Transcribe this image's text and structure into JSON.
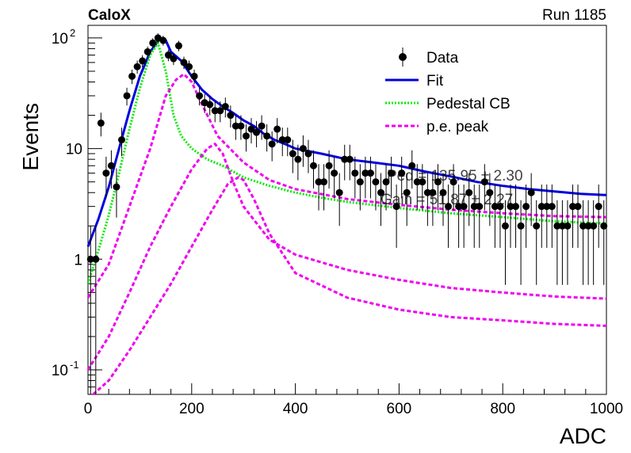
{
  "header": {
    "experiment": "CaloX",
    "run": "Run 1185"
  },
  "chart_data": {
    "type": "scatter",
    "xlabel": "ADC",
    "ylabel": "Events",
    "xlim": [
      0,
      1000
    ],
    "ylim": [
      0.06,
      130
    ],
    "yscale": "log",
    "x_ticks": [
      "0",
      "200",
      "400",
      "600",
      "800",
      "1000"
    ],
    "y_ticks": [
      {
        "value": 0.1,
        "label": "10",
        "exp": "-1"
      },
      {
        "value": 1,
        "label": "1",
        "exp": ""
      },
      {
        "value": 10,
        "label": "10",
        "exp": ""
      },
      {
        "value": 100,
        "label": "10",
        "exp": "2"
      }
    ],
    "legend": {
      "placement": "top-right",
      "entries": [
        {
          "label": "Data",
          "style": "marker",
          "color": "#000000"
        },
        {
          "label": "Fit",
          "style": "solid",
          "color": "#0000dd"
        },
        {
          "label": "Pedestal CB",
          "style": "dotted",
          "color": "#00ee00"
        },
        {
          "label": "p.e. peak",
          "style": "dashed",
          "color": "#ee00ee"
        }
      ]
    },
    "annotations": [
      "Ped = 135.95 ± 2.30",
      "Gain = 51.87 ± 2.27"
    ],
    "series": [
      {
        "name": "Data",
        "kind": "points",
        "x": [
          5,
          15,
          25,
          35,
          45,
          55,
          65,
          75,
          85,
          95,
          105,
          115,
          125,
          135,
          145,
          155,
          165,
          175,
          185,
          195,
          205,
          215,
          225,
          235,
          245,
          255,
          265,
          275,
          285,
          295,
          305,
          315,
          325,
          335,
          345,
          355,
          365,
          375,
          385,
          395,
          405,
          415,
          425,
          435,
          445,
          455,
          465,
          475,
          485,
          495,
          505,
          515,
          525,
          535,
          545,
          555,
          565,
          575,
          585,
          595,
          605,
          615,
          625,
          635,
          645,
          655,
          665,
          675,
          685,
          695,
          705,
          715,
          725,
          735,
          745,
          755,
          765,
          775,
          785,
          795,
          805,
          815,
          825,
          835,
          845,
          855,
          865,
          875,
          885,
          895,
          905,
          915,
          925,
          935,
          945,
          955,
          965,
          975,
          985,
          995
        ],
        "y": [
          1.0,
          1.0,
          17,
          6.0,
          7.0,
          4.5,
          12,
          30,
          45,
          55,
          62,
          75,
          90,
          100,
          95,
          70,
          65,
          85,
          60,
          55,
          45,
          30,
          26,
          25,
          22,
          22,
          24,
          20,
          16,
          16,
          13,
          15,
          14,
          16,
          13,
          11,
          15,
          12,
          12,
          9,
          8,
          10,
          9,
          7,
          5,
          5,
          7,
          6,
          4,
          8,
          8,
          6,
          5,
          6,
          6,
          5,
          4,
          5,
          6,
          3,
          6,
          4,
          7,
          5,
          5,
          4,
          4,
          5,
          4,
          3,
          5,
          3,
          3,
          4,
          3,
          3,
          5,
          4,
          3,
          3,
          2,
          3,
          3,
          2,
          3,
          4,
          2,
          3,
          3,
          3,
          2,
          2,
          2,
          3,
          3,
          2,
          2,
          2,
          3,
          2
        ]
      },
      {
        "name": "Fit",
        "kind": "line",
        "color": "#0000dd",
        "x": [
          0,
          20,
          40,
          60,
          80,
          100,
          120,
          140,
          150,
          160,
          180,
          200,
          220,
          240,
          260,
          280,
          300,
          320,
          340,
          360,
          380,
          400,
          450,
          500,
          550,
          600,
          650,
          700,
          750,
          800,
          850,
          900,
          950,
          1000
        ],
        "y": [
          1.3,
          2.3,
          4.5,
          10,
          22,
          45,
          75,
          100,
          95,
          75,
          62,
          45,
          34,
          28,
          24,
          21,
          18,
          16,
          13.5,
          12,
          11,
          10,
          9,
          8,
          7.5,
          7,
          6.2,
          5.6,
          5,
          4.6,
          4.3,
          4.1,
          3.9,
          3.8
        ]
      },
      {
        "name": "Pedestal CB",
        "kind": "line",
        "color": "#00ee00",
        "x": [
          0,
          20,
          40,
          60,
          80,
          100,
          120,
          135,
          150,
          165,
          180,
          200,
          230,
          260,
          300,
          350,
          400,
          450,
          500,
          600,
          700,
          800,
          900,
          1000
        ],
        "y": [
          0.6,
          1.2,
          2.5,
          6,
          15,
          35,
          70,
          90,
          50,
          20,
          13,
          10,
          8,
          7,
          5.5,
          4.6,
          4,
          3.6,
          3.3,
          2.9,
          2.6,
          2.4,
          2.2,
          2.1
        ]
      },
      {
        "name": "p.e. peak 1",
        "kind": "line",
        "color": "#ee00ee",
        "x": [
          0,
          40,
          80,
          120,
          150,
          170,
          185,
          200,
          220,
          250,
          300,
          350,
          400,
          500,
          600,
          700,
          800,
          900,
          1000
        ],
        "y": [
          0.45,
          0.9,
          3,
          10,
          30,
          42,
          47,
          40,
          25,
          13,
          7.5,
          5.2,
          4.3,
          3.5,
          3.1,
          2.8,
          2.6,
          2.45,
          2.4
        ]
      },
      {
        "name": "p.e. peak 2",
        "kind": "line",
        "color": "#ee00ee",
        "x": [
          0,
          40,
          80,
          120,
          160,
          200,
          230,
          245,
          260,
          280,
          300,
          350,
          400,
          500,
          600,
          700,
          800,
          900,
          1000
        ],
        "y": [
          0.1,
          0.2,
          0.5,
          1.3,
          3,
          6.5,
          10,
          11,
          9,
          5,
          3,
          1.5,
          1.1,
          0.8,
          0.65,
          0.55,
          0.5,
          0.46,
          0.44
        ]
      },
      {
        "name": "p.e. peak 3",
        "kind": "line",
        "color": "#ee00ee",
        "x": [
          10,
          40,
          80,
          120,
          160,
          200,
          240,
          270,
          290,
          300,
          320,
          350,
          400,
          500,
          600,
          700,
          800,
          900,
          1000
        ],
        "y": [
          0.05,
          0.08,
          0.15,
          0.3,
          0.6,
          1.3,
          2.8,
          4.8,
          5.5,
          5.2,
          3.5,
          1.7,
          0.75,
          0.45,
          0.35,
          0.3,
          0.28,
          0.26,
          0.25
        ]
      }
    ]
  }
}
